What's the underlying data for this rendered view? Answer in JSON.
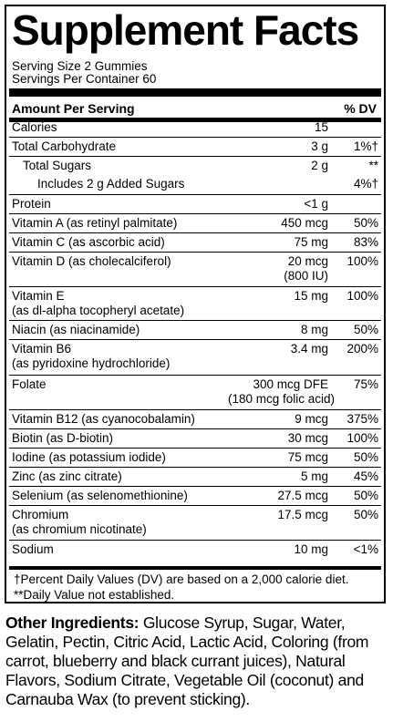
{
  "title": "Supplement Facts",
  "serving_size": "Serving Size 2 Gummies",
  "servings_per_container": "Servings Per Container 60",
  "header": {
    "amount": "Amount Per Serving",
    "dv": "% DV"
  },
  "rows": [
    {
      "name": [
        "Calories"
      ],
      "amount": [
        "15"
      ],
      "dv": ""
    },
    {
      "name": [
        "Total Carbohydrate"
      ],
      "amount": [
        "3 g"
      ],
      "dv": "1%†"
    },
    {
      "name": [
        "Total Sugars"
      ],
      "amount": [
        "2 g"
      ],
      "dv": "**"
    },
    {
      "name": [
        "Includes 2 g Added Sugars"
      ],
      "amount": [
        ""
      ],
      "dv": "4%†"
    },
    {
      "name": [
        "Protein"
      ],
      "amount": [
        "<1 g"
      ],
      "dv": ""
    },
    {
      "name": [
        "Vitamin A (as retinyl palmitate)"
      ],
      "amount": [
        "450 mcg"
      ],
      "dv": "50%"
    },
    {
      "name": [
        "Vitamin C (as ascorbic acid)"
      ],
      "amount": [
        "75 mg"
      ],
      "dv": "83%"
    },
    {
      "name": [
        "Vitamin D (as cholecalciferol)"
      ],
      "amount": [
        "20 mcg",
        "(800 IU)"
      ],
      "dv": "100%"
    },
    {
      "name": [
        "Vitamin E",
        "(as dl-alpha tocopheryl acetate)"
      ],
      "amount": [
        "15 mg"
      ],
      "dv": "100%"
    },
    {
      "name": [
        "Niacin (as niacinamide)"
      ],
      "amount": [
        "8 mg"
      ],
      "dv": "50%"
    },
    {
      "name": [
        "Vitamin B6",
        "(as pyridoxine hydrochloride)"
      ],
      "amount": [
        "3.4 mg"
      ],
      "dv": "200%"
    },
    {
      "name": [
        "Folate"
      ],
      "amount": [
        "300 mcg DFE",
        "(180 mcg folic acid)"
      ],
      "dv": "75%"
    },
    {
      "name": [
        "Vitamin B12 (as cyanocobalamin)"
      ],
      "amount": [
        "9 mcg"
      ],
      "dv": "375%"
    },
    {
      "name": [
        "Biotin (as D-biotin)"
      ],
      "amount": [
        "30 mcg"
      ],
      "dv": "100%"
    },
    {
      "name": [
        "Iodine (as potassium iodide)"
      ],
      "amount": [
        "75 mcg"
      ],
      "dv": "50%"
    },
    {
      "name": [
        "Zinc (as zinc citrate)"
      ],
      "amount": [
        "5 mg"
      ],
      "dv": "45%"
    },
    {
      "name": [
        "Selenium (as selenomethionine)"
      ],
      "amount": [
        "27.5 mcg"
      ],
      "dv": "50%"
    },
    {
      "name": [
        "Chromium",
        "(as chromium nicotinate)"
      ],
      "amount": [
        "17.5 mcg"
      ],
      "dv": "50%"
    },
    {
      "name": [
        "Sodium"
      ],
      "amount": [
        "10 mg"
      ],
      "dv": "<1%"
    }
  ],
  "footnotes": [
    "†Percent Daily Values (DV) are based on a 2,000 calorie diet.",
    "**Daily Value not established."
  ],
  "other_ingredients": {
    "label": "Other Ingredients:",
    "text": " Glucose Syrup, Sugar, Water, Gelatin, Pectin, Citric Acid, Lactic Acid, Coloring (from carrot, blueberry and black currant juices), Natural Flavors, Sodium Citrate, Vegetable Oil (coconut) and Carnauba Wax (to prevent sticking)."
  }
}
